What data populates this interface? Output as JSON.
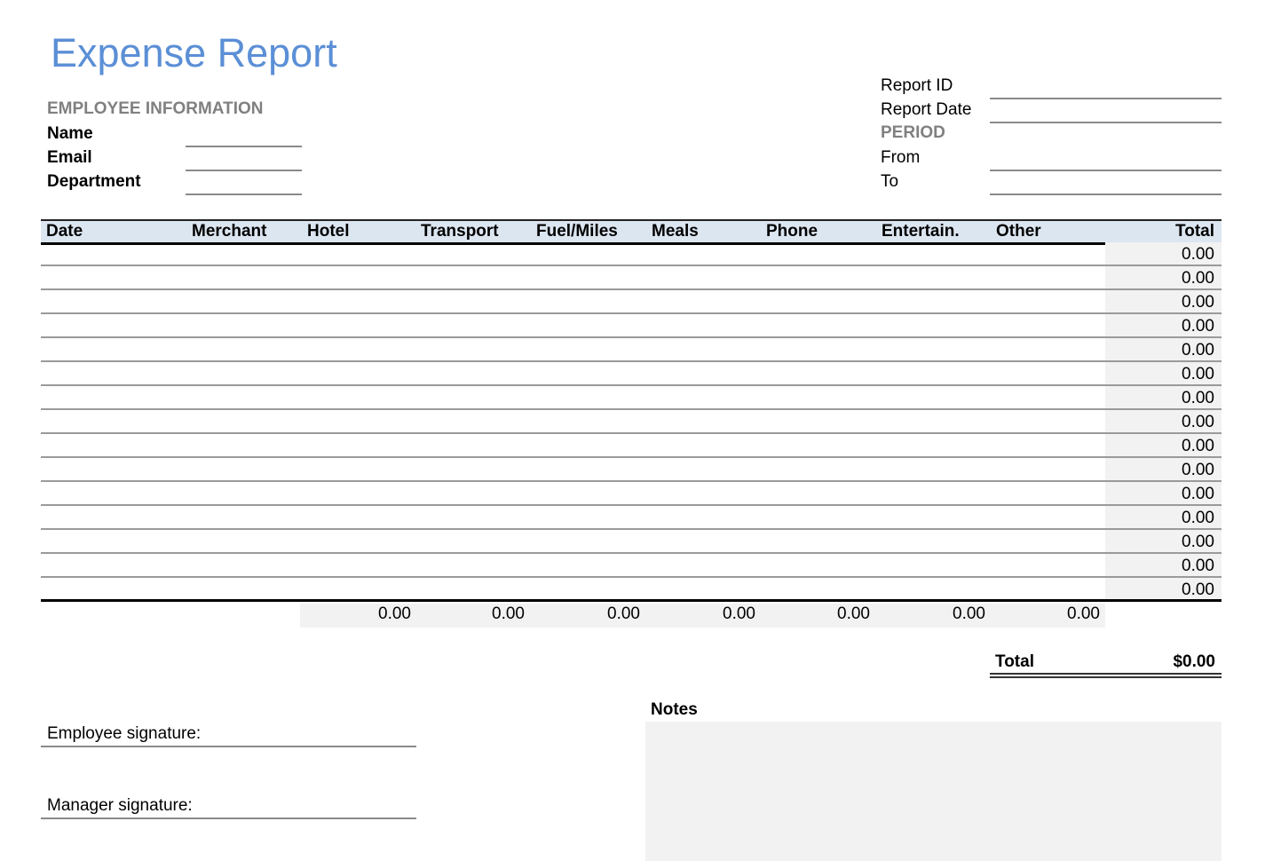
{
  "title": "Expense Report",
  "employee": {
    "section_label": "EMPLOYEE INFORMATION",
    "fields": [
      {
        "label": "Name",
        "value": ""
      },
      {
        "label": "Email",
        "value": ""
      },
      {
        "label": "Department",
        "value": ""
      }
    ]
  },
  "report": {
    "report_id_label": "Report ID",
    "report_id_value": "",
    "report_date_label": "Report Date",
    "report_date_value": "",
    "period_label": "PERIOD",
    "from_label": "From",
    "from_value": "",
    "to_label": "To",
    "to_value": ""
  },
  "table": {
    "columns": [
      "Date",
      "Merchant",
      "Hotel",
      "Transport",
      "Fuel/Miles",
      "Meals",
      "Phone",
      "Entertain.",
      "Other",
      "Total"
    ],
    "row_totals": [
      "0.00",
      "0.00",
      "0.00",
      "0.00",
      "0.00",
      "0.00",
      "0.00",
      "0.00",
      "0.00",
      "0.00",
      "0.00",
      "0.00",
      "0.00",
      "0.00",
      "0.00"
    ],
    "column_totals": [
      "0.00",
      "0.00",
      "0.00",
      "0.00",
      "0.00",
      "0.00",
      "0.00"
    ]
  },
  "grand_total": {
    "label": "Total",
    "value": "$0.00"
  },
  "signatures": {
    "employee_label": "Employee signature:",
    "manager_label": "Manager signature:"
  },
  "notes": {
    "label": "Notes",
    "value": ""
  },
  "colors": {
    "title": "#5b8fd6",
    "header_band": "#dce6f1",
    "total_fill": "#f2f2f2",
    "section_label": "#808080"
  }
}
